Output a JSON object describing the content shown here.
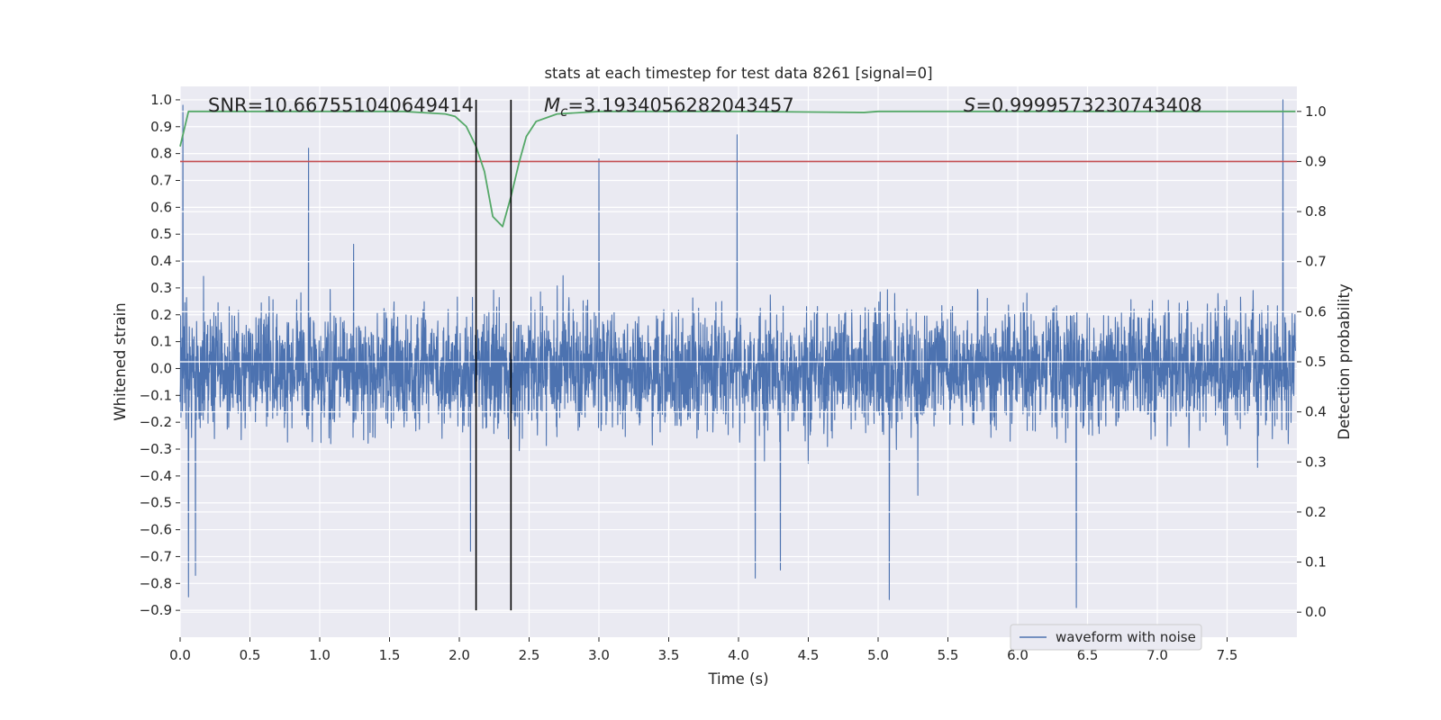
{
  "chart_data": {
    "type": "line",
    "title": "stats at each timestep for test data 8261 [signal=0]",
    "xlabel": "Time (s)",
    "ylabel": "Whitened strain",
    "y2label": "Detection probability",
    "xlim": [
      0.0,
      8.0
    ],
    "ylim": [
      -1.0,
      1.05
    ],
    "y2lim": [
      -0.05,
      1.05
    ],
    "xticks": [
      "0.0",
      "0.5",
      "1.0",
      "1.5",
      "2.0",
      "2.5",
      "3.0",
      "3.5",
      "4.0",
      "4.5",
      "5.0",
      "5.5",
      "6.0",
      "6.5",
      "7.0",
      "7.5"
    ],
    "xtick_values": [
      0.0,
      0.5,
      1.0,
      1.5,
      2.0,
      2.5,
      3.0,
      3.5,
      4.0,
      4.5,
      5.0,
      5.5,
      6.0,
      6.5,
      7.0,
      7.5
    ],
    "yticks": [
      "1.0",
      "0.9",
      "0.8",
      "0.7",
      "0.6",
      "0.5",
      "0.4",
      "0.3",
      "0.2",
      "0.1",
      "0.0",
      "−0.1",
      "−0.2",
      "−0.3",
      "−0.4",
      "−0.5",
      "−0.6",
      "−0.7",
      "−0.8",
      "−0.9"
    ],
    "ytick_values": [
      1.0,
      0.9,
      0.8,
      0.7,
      0.6,
      0.5,
      0.4,
      0.3,
      0.2,
      0.1,
      0.0,
      -0.1,
      -0.2,
      -0.3,
      -0.4,
      -0.5,
      -0.6,
      -0.7,
      -0.8,
      -0.9
    ],
    "y2ticks": [
      "1.0",
      "0.9",
      "0.8",
      "0.7",
      "0.6",
      "0.5",
      "0.4",
      "0.3",
      "0.2",
      "0.1",
      "0.0"
    ],
    "y2tick_values": [
      1.0,
      0.9,
      0.8,
      0.7,
      0.6,
      0.5,
      0.4,
      0.3,
      0.2,
      0.1,
      0.0
    ],
    "series": [
      {
        "name": "waveform with noise",
        "axis": "left",
        "color": "#4c72b0",
        "kind": "noise",
        "x_range": [
          0.0,
          7.99
        ],
        "typical_amplitude": 0.4,
        "notable_peaks": [
          {
            "x": 0.02,
            "y": 0.98
          },
          {
            "x": 0.06,
            "y": -0.85
          },
          {
            "x": 0.11,
            "y": -0.77
          },
          {
            "x": 0.92,
            "y": 0.82
          },
          {
            "x": 2.08,
            "y": -0.68
          },
          {
            "x": 3.0,
            "y": 0.78
          },
          {
            "x": 3.99,
            "y": 0.87
          },
          {
            "x": 4.12,
            "y": -0.78
          },
          {
            "x": 4.3,
            "y": -0.75
          },
          {
            "x": 5.08,
            "y": -0.86
          },
          {
            "x": 6.42,
            "y": -0.89
          },
          {
            "x": 7.9,
            "y": 1.0
          }
        ]
      },
      {
        "name": "detection probability",
        "axis": "right",
        "color": "#55a868",
        "x": [
          0.0,
          0.06,
          0.2,
          1.6,
          1.9,
          1.97,
          2.05,
          2.12,
          2.18,
          2.24,
          2.31,
          2.37,
          2.43,
          2.48,
          2.55,
          2.7,
          3.0,
          4.0,
          4.9,
          5.0,
          6.0,
          7.0,
          7.99
        ],
        "y": [
          0.93,
          1.0,
          1.0,
          1.0,
          0.995,
          0.99,
          0.97,
          0.93,
          0.88,
          0.79,
          0.77,
          0.83,
          0.9,
          0.95,
          0.98,
          0.995,
          1.0,
          1.0,
          0.998,
          1.0,
          1.0,
          1.0,
          1.0
        ]
      }
    ],
    "threshold": {
      "axis": "right",
      "value": 0.9,
      "color": "#c44e52"
    },
    "vlines": [
      2.12,
      2.37
    ],
    "vline_range": [
      -0.9,
      1.0
    ],
    "annotations": {
      "snr": "SNR=10.667551040649414",
      "mc_symbol": "M",
      "mc_sub": "c",
      "mc_value": "=3.1934056282043457",
      "s_symbol": "S",
      "s_value": "=0.9999573230743408"
    },
    "legend": {
      "label": "waveform with noise",
      "position": "bottom-right"
    },
    "grid": true
  }
}
